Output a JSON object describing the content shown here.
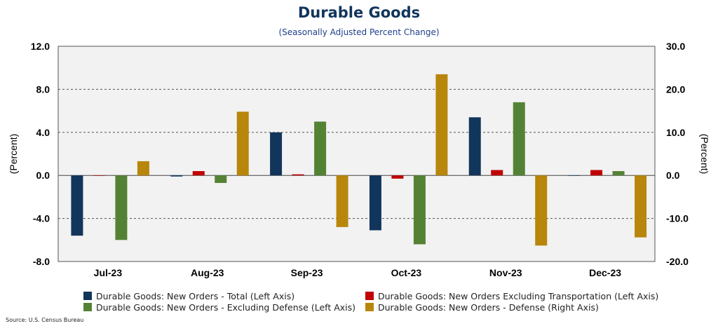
{
  "chart_data": {
    "type": "bar",
    "title": "Durable Goods",
    "subtitle": "(Seasonally Adjusted Percent Change)",
    "categories": [
      "Jul-23",
      "Aug-23",
      "Sep-23",
      "Oct-23",
      "Nov-23",
      "Dec-23"
    ],
    "ylabel_left": "(Percent)",
    "ylabel_right": "(Percent)",
    "ylim_left": [
      -8,
      12
    ],
    "ylim_right": [
      -20,
      30
    ],
    "yticks_left": [
      "12.0",
      "8.0",
      "4.0",
      "0.0",
      "-4.0",
      "-8.0"
    ],
    "yticks_right": [
      "30.0",
      "20.0",
      "10.0",
      "0.0",
      "-10.0",
      "-20.0"
    ],
    "grid": "horizontal dashed",
    "legend_position": "bottom",
    "series": [
      {
        "name": "Durable Goods: New Orders - Total (Left Axis)",
        "axis": "left",
        "color": "#12355b",
        "values": [
          -5.6,
          -0.1,
          4.0,
          -5.1,
          5.4,
          0.0
        ]
      },
      {
        "name": "Durable Goods: New Orders Excluding Transportation (Left Axis)",
        "axis": "left",
        "color": "#c00000",
        "values": [
          0.0,
          0.4,
          0.1,
          -0.3,
          0.5,
          0.5
        ]
      },
      {
        "name": "Durable Goods: New Orders - Excluding Defense (Left Axis)",
        "axis": "left",
        "color": "#548235",
        "values": [
          -6.0,
          -0.7,
          5.0,
          -6.4,
          6.8,
          0.4
        ]
      },
      {
        "name": "Durable Goods: New Orders - Defense (Right Axis)",
        "axis": "right",
        "color": "#b8860b",
        "values": [
          3.3,
          14.8,
          -12.0,
          23.5,
          -16.3,
          -14.4
        ]
      }
    ]
  },
  "source": "Source: U.S. Census Bureau"
}
